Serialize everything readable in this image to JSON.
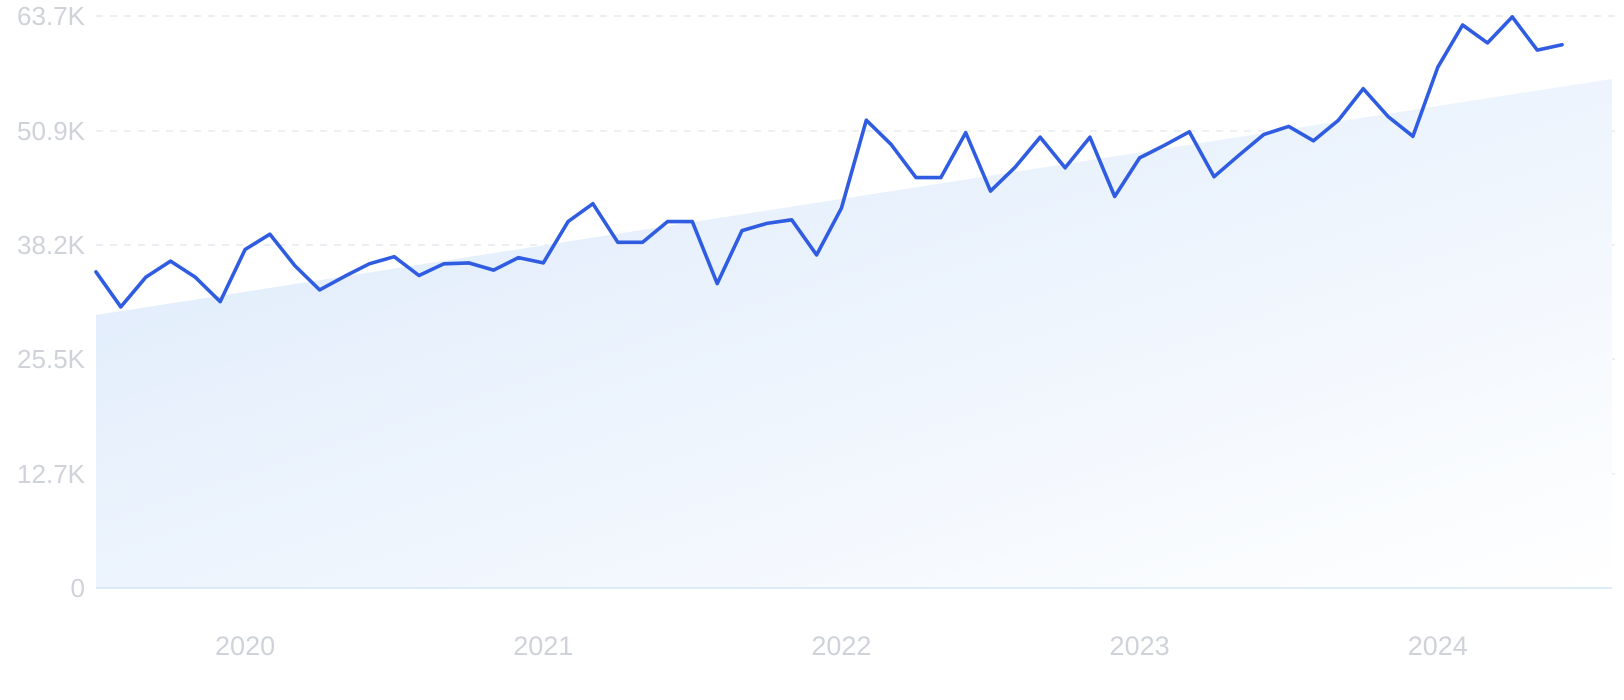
{
  "chart_data": {
    "type": "line",
    "title": "",
    "xlabel": "",
    "ylabel": "",
    "x_start": "2019-07",
    "x_frequency": "monthly",
    "xlim": [
      "2019-07",
      "2024-06"
    ],
    "ylim": [
      0,
      63700
    ],
    "yticks": [
      {
        "value": 0,
        "label": "0"
      },
      {
        "value": 12700,
        "label": "12.7K"
      },
      {
        "value": 25500,
        "label": "25.5K"
      },
      {
        "value": 38200,
        "label": "38.2K"
      },
      {
        "value": 50900,
        "label": "50.9K"
      },
      {
        "value": 63700,
        "label": "63.7K"
      }
    ],
    "xticks": [
      {
        "value": "2020-01",
        "label": "2020"
      },
      {
        "value": "2021-01",
        "label": "2021"
      },
      {
        "value": "2022-01",
        "label": "2022"
      },
      {
        "value": "2023-01",
        "label": "2023"
      },
      {
        "value": "2024-01",
        "label": "2024"
      }
    ],
    "grid": true,
    "series": [
      {
        "values": [
          35200,
          31300,
          34600,
          36400,
          34600,
          31900,
          37700,
          39400,
          35900,
          33200,
          34700,
          36100,
          36900,
          34800,
          36100,
          36200,
          35400,
          36800,
          36200,
          40800,
          42800,
          38500,
          38500,
          40800,
          40800,
          33900,
          39800,
          40600,
          41000,
          37100,
          42300,
          52100,
          49400,
          45700,
          45700,
          50700,
          44200,
          46900,
          50200,
          46800,
          50200,
          43600,
          47900,
          49300,
          50800,
          45800,
          48200,
          50500,
          51400,
          49800,
          52100,
          55600,
          52500,
          50300,
          58000,
          62700,
          60700,
          63600,
          59900,
          60500
        ]
      }
    ],
    "trend": {
      "start": 30400,
      "end": 56700
    },
    "colors": {
      "line": "#2f5ce1",
      "area_start": "#dbe9fb",
      "area_end": "#ffffff",
      "grid": "#dfe4ea",
      "baseline": "#d2e5f7",
      "tick_label": "#cfd3d9"
    }
  }
}
